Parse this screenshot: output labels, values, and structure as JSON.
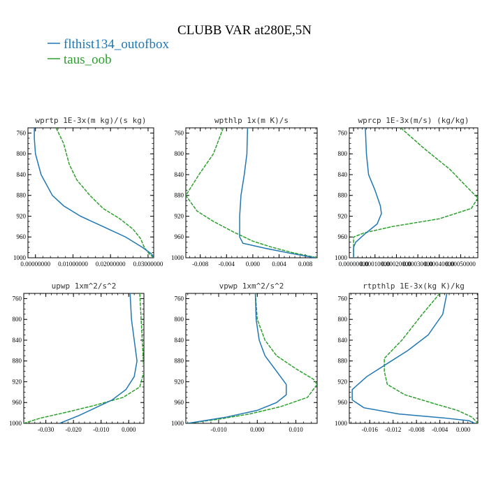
{
  "title": "CLUBB VAR at280E,5N",
  "legend": [
    {
      "label": "flthist134_outofbox",
      "color": "#1f77b4"
    },
    {
      "label": "taus_oob",
      "color": "#2ca02c"
    }
  ],
  "chart_data": [
    {
      "type": "line",
      "title": "wprtp  1E-3x(m kg)/(s kg)",
      "xlim": [
        -0.002,
        0.0315
      ],
      "ylim": [
        1000,
        750
      ],
      "y_ticks": [
        760,
        800,
        840,
        880,
        920,
        960,
        1000
      ],
      "x_ticks": [
        0.0,
        0.01,
        0.02,
        0.03
      ],
      "x_tick_labels": [
        "0.00000000",
        "0.01000000",
        "0.02000000",
        "0.03000000"
      ],
      "series": [
        {
          "name": "flthist134_outofbox",
          "color": "#1f77b4",
          "points": [
            [
              -0.0003,
              750
            ],
            [
              -0.0003,
              770
            ],
            [
              0.0,
              800
            ],
            [
              0.0015,
              840
            ],
            [
              0.0045,
              880
            ],
            [
              0.0075,
              900
            ],
            [
              0.012,
              920
            ],
            [
              0.018,
              940
            ],
            [
              0.024,
              960
            ],
            [
              0.0285,
              980
            ],
            [
              0.031,
              993
            ],
            [
              0.0315,
              1000
            ]
          ]
        },
        {
          "name": "taus_oob",
          "color": "#2ca02c",
          "points": [
            [
              0.0055,
              750
            ],
            [
              0.0075,
              780
            ],
            [
              0.009,
              820
            ],
            [
              0.011,
              850
            ],
            [
              0.0145,
              880
            ],
            [
              0.018,
              905
            ],
            [
              0.0225,
              925
            ],
            [
              0.026,
              945
            ],
            [
              0.028,
              963
            ],
            [
              0.029,
              980
            ],
            [
              0.03,
              990
            ],
            [
              0.0315,
              1000
            ]
          ]
        }
      ]
    },
    {
      "type": "line",
      "title": "wpthlp  1x(m K)/s",
      "xlim": [
        -0.0102,
        0.0098
      ],
      "ylim": [
        1000,
        750
      ],
      "y_ticks": [
        760,
        800,
        840,
        880,
        920,
        960,
        1000
      ],
      "x_ticks": [
        -0.008,
        -0.004,
        0.0,
        0.004,
        0.008
      ],
      "x_tick_labels": [
        "-0.008",
        "-0.004",
        "0.000",
        "0.004",
        "0.008"
      ],
      "series": [
        {
          "name": "flthist134_outofbox",
          "color": "#1f77b4",
          "points": [
            [
              -0.0008,
              750
            ],
            [
              -0.0009,
              800
            ],
            [
              -0.0013,
              840
            ],
            [
              -0.0018,
              880
            ],
            [
              -0.002,
              920
            ],
            [
              -0.002,
              960
            ],
            [
              -0.0015,
              972
            ],
            [
              0.002,
              982
            ],
            [
              0.006,
              992
            ],
            [
              0.0095,
              1000
            ]
          ]
        },
        {
          "name": "taus_oob",
          "color": "#2ca02c",
          "points": [
            [
              -0.0045,
              750
            ],
            [
              -0.006,
              800
            ],
            [
              -0.0082,
              840
            ],
            [
              -0.0102,
              880
            ],
            [
              -0.0085,
              910
            ],
            [
              -0.006,
              930
            ],
            [
              -0.003,
              950
            ],
            [
              0.0,
              968
            ],
            [
              0.003,
              980
            ],
            [
              0.006,
              990
            ],
            [
              0.0098,
              1000
            ]
          ]
        }
      ]
    },
    {
      "type": "line",
      "title": "wprcp  1E-3x(m/s) (kg/kg)",
      "xlim": [
        -2e-05,
        0.00058
      ],
      "ylim": [
        1000,
        750
      ],
      "y_ticks": [
        760,
        800,
        840,
        880,
        920,
        960,
        1000
      ],
      "x_ticks": [
        0.0,
        0.0001,
        0.0002,
        0.0003,
        0.0004,
        0.0005
      ],
      "x_tick_labels": [
        "0.00000000",
        "0.00010000",
        "0.00020000",
        "0.00030000",
        "0.00040000",
        "0.00050000"
      ],
      "series": [
        {
          "name": "flthist134_outofbox",
          "color": "#1f77b4",
          "points": [
            [
              5.5e-05,
              750
            ],
            [
              6e-05,
              800
            ],
            [
              7e-05,
              840
            ],
            [
              0.0001,
              870
            ],
            [
              0.000125,
              900
            ],
            [
              0.00013,
              915
            ],
            [
              0.00011,
              935
            ],
            [
              5e-05,
              955
            ],
            [
              1e-05,
              970
            ],
            [
              0.0,
              980
            ],
            [
              0.0,
              1000
            ]
          ]
        },
        {
          "name": "taus_oob",
          "color": "#2ca02c",
          "points": [
            [
              0.00022,
              750
            ],
            [
              0.00033,
              790
            ],
            [
              0.00045,
              830
            ],
            [
              0.00052,
              860
            ],
            [
              0.00058,
              885
            ],
            [
              0.00055,
              905
            ],
            [
              0.0004,
              925
            ],
            [
              0.00018,
              940
            ],
            [
              5e-05,
              952
            ],
            [
              0.0,
              960
            ],
            [
              0.0,
              1000
            ]
          ]
        }
      ]
    },
    {
      "type": "line",
      "title": "upwp  1xm^2/s^2",
      "xlim": [
        -0.038,
        0.0055
      ],
      "ylim": [
        1000,
        750
      ],
      "y_ticks": [
        760,
        800,
        840,
        880,
        920,
        960,
        1000
      ],
      "x_ticks": [
        -0.03,
        -0.02,
        -0.01,
        0.0
      ],
      "x_tick_labels": [
        "-0.030",
        "-0.020",
        "-0.010",
        "0.000"
      ],
      "series": [
        {
          "name": "flthist134_outofbox",
          "color": "#1f77b4",
          "points": [
            [
              0.0005,
              750
            ],
            [
              0.001,
              800
            ],
            [
              0.002,
              840
            ],
            [
              0.003,
              880
            ],
            [
              0.002,
              910
            ],
            [
              -0.001,
              935
            ],
            [
              -0.006,
              955
            ],
            [
              -0.012,
              970
            ],
            [
              -0.018,
              985
            ],
            [
              -0.025,
              1000
            ]
          ]
        },
        {
          "name": "taus_oob",
          "color": "#2ca02c",
          "points": [
            [
              0.004,
              750
            ],
            [
              0.0045,
              800
            ],
            [
              0.005,
              850
            ],
            [
              0.0055,
              900
            ],
            [
              0.004,
              930
            ],
            [
              -0.002,
              950
            ],
            [
              -0.012,
              965
            ],
            [
              -0.022,
              978
            ],
            [
              -0.032,
              990
            ],
            [
              -0.038,
              1000
            ]
          ]
        }
      ]
    },
    {
      "type": "line",
      "title": "vpwp  1xm^2/s^2",
      "xlim": [
        -0.0185,
        0.0155
      ],
      "ylim": [
        1000,
        750
      ],
      "y_ticks": [
        760,
        800,
        840,
        880,
        920,
        960,
        1000
      ],
      "x_ticks": [
        -0.01,
        0.0,
        0.01
      ],
      "x_tick_labels": [
        "-0.010",
        "0.000",
        "0.010"
      ],
      "series": [
        {
          "name": "flthist134_outofbox",
          "color": "#1f77b4",
          "points": [
            [
              -0.0005,
              750
            ],
            [
              -0.0003,
              800
            ],
            [
              0.0005,
              840
            ],
            [
              0.002,
              870
            ],
            [
              0.005,
              900
            ],
            [
              0.0075,
              925
            ],
            [
              0.0075,
              945
            ],
            [
              0.005,
              960
            ],
            [
              0.0,
              975
            ],
            [
              -0.008,
              988
            ],
            [
              -0.018,
              1000
            ]
          ]
        },
        {
          "name": "taus_oob",
          "color": "#2ca02c",
          "points": [
            [
              -0.0005,
              750
            ],
            [
              0.0,
              800
            ],
            [
              0.002,
              840
            ],
            [
              0.005,
              870
            ],
            [
              0.01,
              895
            ],
            [
              0.0145,
              915
            ],
            [
              0.0155,
              925
            ],
            [
              0.013,
              950
            ],
            [
              0.006,
              968
            ],
            [
              -0.002,
              982
            ],
            [
              -0.01,
              992
            ],
            [
              -0.018,
              1000
            ]
          ]
        }
      ]
    },
    {
      "type": "line",
      "title": "rtpthlp  1E-3x(kg K)/kg",
      "xlim": [
        -0.0195,
        0.0025
      ],
      "ylim": [
        1000,
        750
      ],
      "y_ticks": [
        760,
        800,
        840,
        880,
        920,
        960,
        1000
      ],
      "x_ticks": [
        -0.016,
        -0.012,
        -0.008,
        -0.004,
        0.0
      ],
      "x_tick_labels": [
        "-0.016",
        "-0.012",
        "-0.008",
        "-0.004",
        "0.000"
      ],
      "series": [
        {
          "name": "flthist134_outofbox",
          "color": "#1f77b4",
          "points": [
            [
              -0.0028,
              750
            ],
            [
              -0.0035,
              790
            ],
            [
              -0.006,
              830
            ],
            [
              -0.0095,
              860
            ],
            [
              -0.013,
              885
            ],
            [
              -0.0165,
              910
            ],
            [
              -0.019,
              935
            ],
            [
              -0.019,
              955
            ],
            [
              -0.017,
              970
            ],
            [
              -0.011,
              982
            ],
            [
              -0.003,
              990
            ],
            [
              0.001,
              995
            ],
            [
              0.002,
              1000
            ]
          ]
        },
        {
          "name": "taus_oob",
          "color": "#2ca02c",
          "points": [
            [
              -0.004,
              750
            ],
            [
              -0.007,
              790
            ],
            [
              -0.0105,
              840
            ],
            [
              -0.0135,
              875
            ],
            [
              -0.0135,
              900
            ],
            [
              -0.013,
              925
            ],
            [
              -0.01,
              945
            ],
            [
              -0.005,
              962
            ],
            [
              -0.001,
              975
            ],
            [
              0.0015,
              988
            ],
            [
              0.0025,
              1000
            ]
          ]
        }
      ]
    }
  ]
}
